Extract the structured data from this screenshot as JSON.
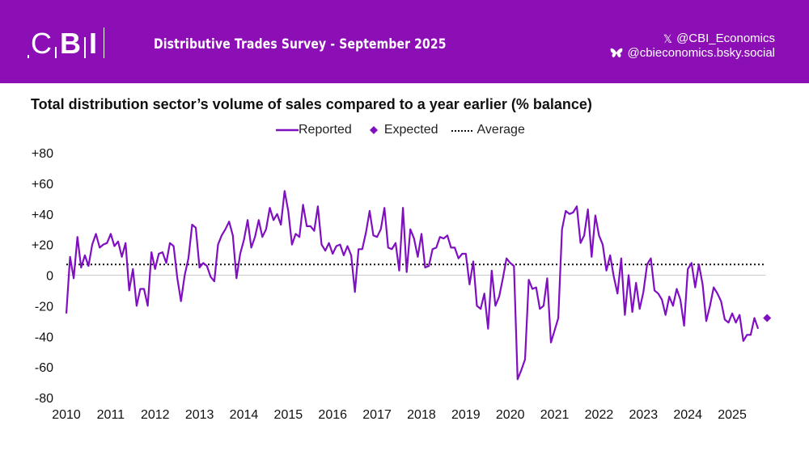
{
  "header": {
    "logo_text": "CBI",
    "survey_title": "Distributive Trades Survey - September 2025",
    "social": [
      {
        "icon": "x-icon",
        "handle": "@CBI_Economics"
      },
      {
        "icon": "bluesky-butterfly-icon",
        "handle": "@cbieconomics.bsky.social"
      }
    ]
  },
  "colors": {
    "banner": "#8c0fb6",
    "series": "#7f0fc0",
    "average": "#111111",
    "zero_line": "#c8c8d0"
  },
  "chart_data": {
    "type": "line",
    "title": "Total distribution sector’s volume of sales compared to a year earlier (% balance)",
    "xlabel": "",
    "ylabel": "",
    "ylim": [
      -80,
      80
    ],
    "yticks": [
      "+80",
      "+60",
      "+40",
      "+20",
      "0",
      "-20",
      "-40",
      "-60",
      "-80"
    ],
    "ytick_values": [
      80,
      60,
      40,
      20,
      0,
      -20,
      -40,
      -60,
      -80
    ],
    "xticks": [
      "2010",
      "2011",
      "2012",
      "2013",
      "2014",
      "2015",
      "2016",
      "2017",
      "2018",
      "2019",
      "2020",
      "2021",
      "2022",
      "2023",
      "2024",
      "2025"
    ],
    "x_start": "2010-01",
    "frequency": "monthly",
    "legend": {
      "placement": "top-center",
      "entries": [
        "Reported",
        "Expected",
        "Average"
      ]
    },
    "grid": false,
    "series": [
      {
        "name": "Reported",
        "style": "line",
        "values": [
          -25,
          12,
          -2,
          25,
          5,
          13,
          6,
          20,
          27,
          18,
          20,
          21,
          27,
          19,
          22,
          12,
          21,
          -10,
          4,
          -20,
          -9,
          -9,
          -20,
          15,
          4,
          14,
          15,
          8,
          21,
          19,
          -2,
          -17,
          0,
          11,
          33,
          31,
          5,
          8,
          6,
          -1,
          -4,
          20,
          26,
          30,
          35,
          26,
          -2,
          14,
          23,
          36,
          18,
          25,
          36,
          25,
          30,
          44,
          36,
          40,
          33,
          55,
          42,
          20,
          27,
          25,
          46,
          32,
          32,
          29,
          45,
          20,
          16,
          21,
          14,
          19,
          20,
          13,
          19,
          13,
          -11,
          17,
          17,
          28,
          42,
          26,
          25,
          30,
          44,
          18,
          17,
          21,
          3,
          44,
          2,
          30,
          24,
          12,
          27,
          5,
          6,
          17,
          18,
          25,
          24,
          26,
          18,
          18,
          11,
          14,
          14,
          -6,
          9,
          -20,
          -22,
          -12,
          -35,
          3,
          -20,
          -14,
          -2,
          11,
          8,
          6,
          -68,
          -62,
          -55,
          -3,
          -9,
          -8,
          -22,
          -20,
          -2,
          -44,
          -36,
          -28,
          30,
          42,
          40,
          41,
          45,
          21,
          26,
          43,
          12,
          39,
          26,
          20,
          3,
          13,
          -1,
          -12,
          11,
          -26,
          0,
          -24,
          -5,
          -22,
          -11,
          7,
          11,
          -10,
          -12,
          -16,
          -26,
          -14,
          -20,
          -9,
          -16,
          -33,
          4,
          8,
          -8,
          7,
          -6,
          -30,
          -20,
          -8,
          -12,
          -17,
          -29,
          -31,
          -25,
          -31,
          -26,
          -43,
          -39,
          -39,
          -28,
          -35
        ]
      },
      {
        "name": "Expected",
        "style": "diamond-marker",
        "points": [
          {
            "x": "2025-10",
            "value": -28
          }
        ]
      },
      {
        "name": "Average",
        "style": "dotted-line",
        "value": 7
      }
    ]
  }
}
